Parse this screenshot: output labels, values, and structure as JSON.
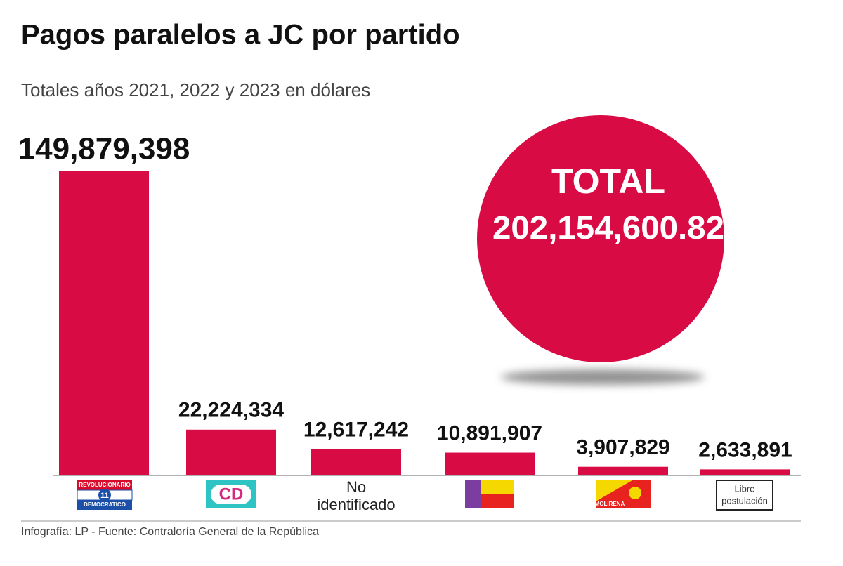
{
  "chart_data": {
    "type": "bar",
    "title": "Pagos paralelos a JC por partido",
    "subtitle": "Totales años 2021, 2022 y 2023 en dólares",
    "categories": [
      [
        "REVOLUCIONARIO",
        "11",
        "DEMOCRATICO"
      ],
      [
        "CD"
      ],
      [
        "No",
        "identificado"
      ],
      null,
      [
        "MOLIRENA"
      ],
      [
        "Libre",
        "postulación"
      ]
    ],
    "values": [
      149879398,
      22224334,
      12617242,
      10891907,
      3907829,
      2633891
    ],
    "value_labels": [
      "149,879,398",
      "22,224,334",
      "12,617,242",
      "10,891,907",
      "3,907,829",
      "2,633,891"
    ],
    "color": "#d80b45",
    "ylim": [
      0,
      150000000
    ],
    "total": {
      "label": "TOTAL",
      "value": 202154600.82,
      "value_label": "202,154,600.82"
    },
    "source": "Infografía: LP - Fuente: Contraloría General de la República"
  }
}
